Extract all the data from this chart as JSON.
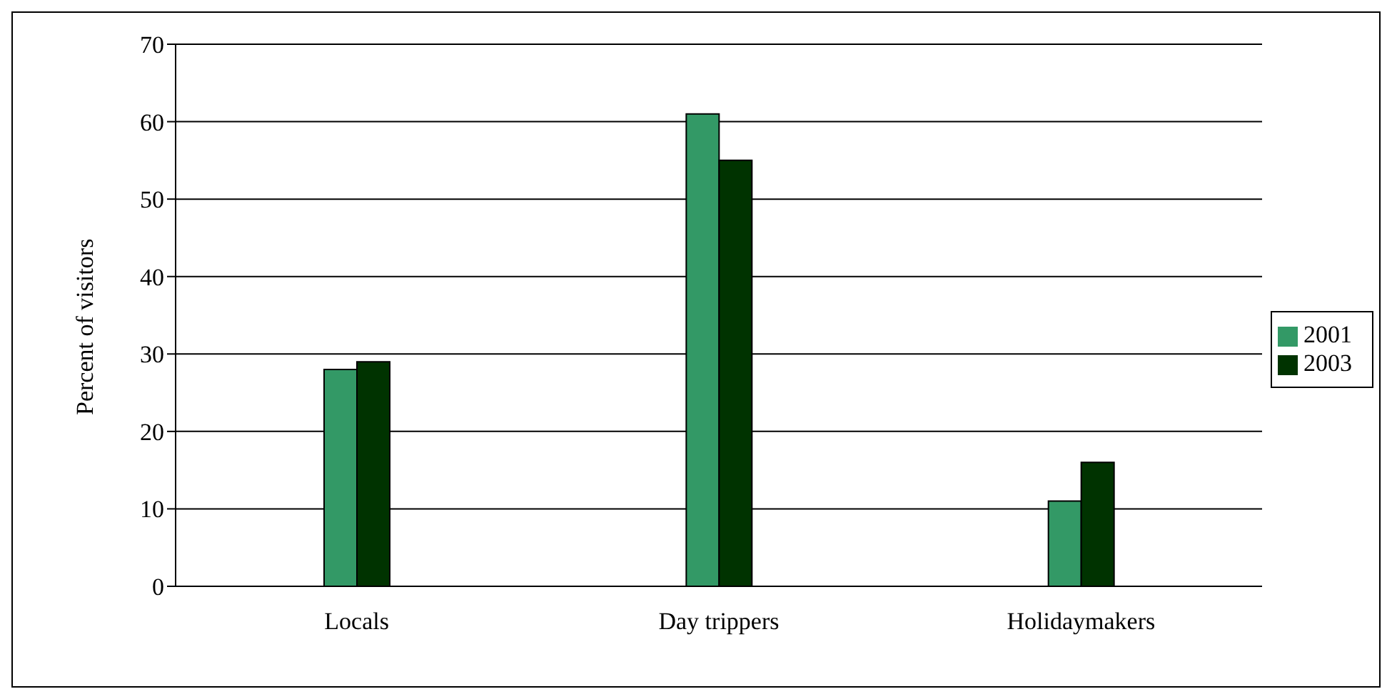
{
  "chart_data": {
    "type": "bar",
    "ylabel": "Percent of visitors",
    "categories": [
      "Locals",
      "Day trippers",
      "Holidaymakers"
    ],
    "series": [
      {
        "name": "2001",
        "color": "#339966",
        "values": [
          28,
          61,
          11
        ]
      },
      {
        "name": "2003",
        "color": "#003300",
        "values": [
          29,
          55,
          16
        ]
      }
    ],
    "ylim": [
      0,
      70
    ],
    "yticks": [
      0,
      10,
      20,
      30,
      40,
      50,
      60,
      70
    ],
    "grid": "y",
    "legend": "right"
  }
}
